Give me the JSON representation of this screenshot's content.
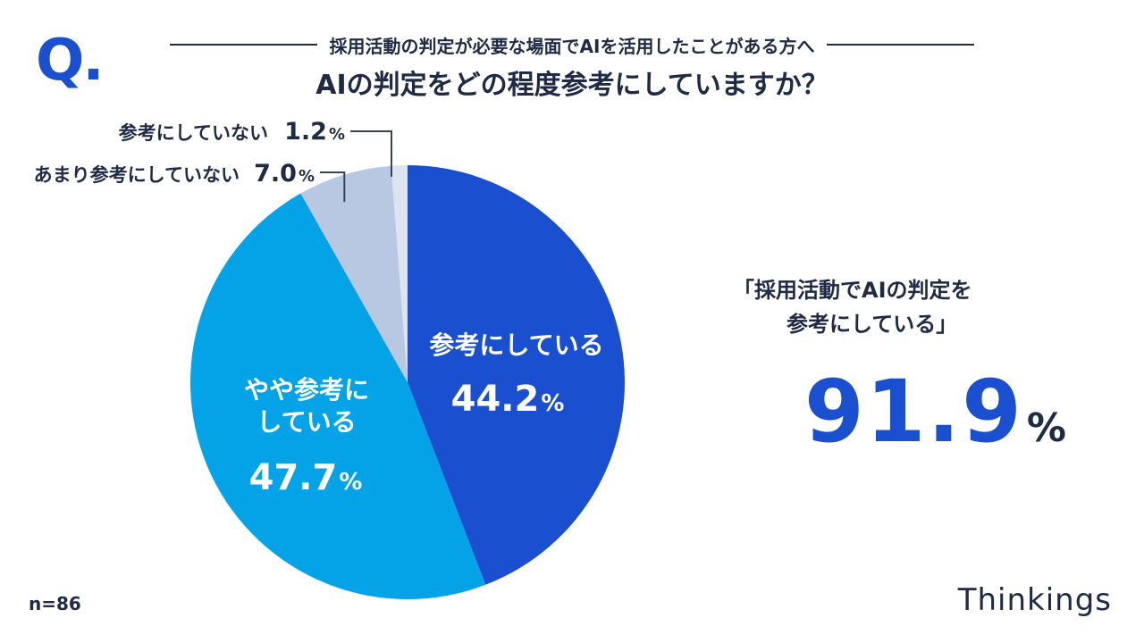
{
  "header": {
    "q_mark": "Q.",
    "subtitle": "採用活動の判定が必要な場面でAIを活用したことがある方へ",
    "title": "AIの判定をどの程度参考にしていますか？"
  },
  "chart_data": {
    "type": "pie",
    "start_angle_deg": 0,
    "direction": "clockwise",
    "slices": [
      {
        "label": "参考にしている",
        "value": 44.2,
        "value_text": "44.2",
        "color": "#1a4fd0",
        "label_style": "inside"
      },
      {
        "label_lines": [
          "やや参考に",
          "している"
        ],
        "value": 47.7,
        "value_text": "47.7",
        "color": "#04a3e8",
        "label_style": "inside"
      },
      {
        "label": "あまり参考にしていない",
        "value": 7.0,
        "value_text": "7.0",
        "color": "#b9c8e2",
        "label_style": "callout"
      },
      {
        "label": "参考にしていない",
        "value": 1.2,
        "value_text": "1.2",
        "color": "#dde4f0",
        "label_style": "callout"
      }
    ],
    "percent_sign": "%"
  },
  "summary": {
    "quote_line1": "「採用活動でAIの判定を",
    "quote_line2": "参考にしている」",
    "total_value": "91.9",
    "total_unit": "%"
  },
  "footer": {
    "n": "n=86",
    "brand": "Thinkings"
  },
  "colors": {
    "accent": "#1a4fd0",
    "text": "#1f2a44",
    "callout_line": "#3a4255"
  }
}
